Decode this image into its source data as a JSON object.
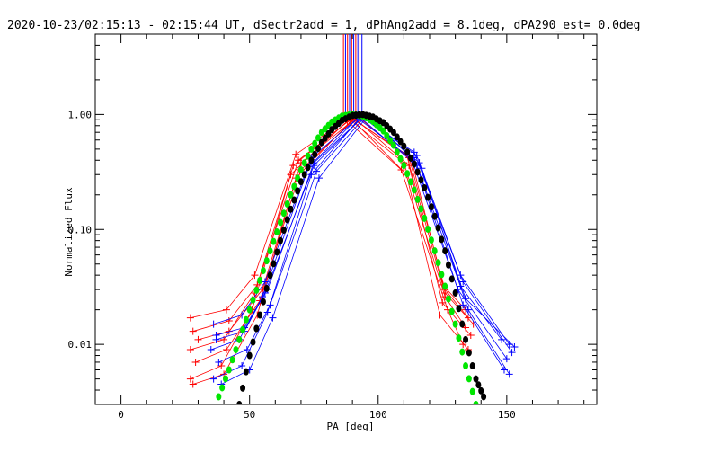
{
  "chart_data": {
    "type": "line",
    "title": "2020-10-23/02:15:13 - 02:15:44 UT, dSectr2add = 1, dPhAng2add = 8.1deg, dPA290_est=  0.0deg",
    "xlabel": "PA [deg]",
    "ylabel": "Normalized Flux",
    "xlim": [
      -10,
      185
    ],
    "ylim": [
      0.003,
      5
    ],
    "yscale": "log",
    "x_ticks": [
      0,
      50,
      100,
      150
    ],
    "x_tick_labels": [
      "0",
      "50",
      "100",
      "150"
    ],
    "y_ticks": [
      0.01,
      0.1,
      1.0
    ],
    "y_tick_labels": [
      "0.01",
      "0.10",
      "1.00"
    ],
    "vertical_lines": [
      {
        "x": 86.5,
        "color": "#ff0000"
      },
      {
        "x": 87.3,
        "color": "#0000ff"
      },
      {
        "x": 88.1,
        "color": "#ff0000"
      },
      {
        "x": 88.9,
        "color": "#0000ff"
      },
      {
        "x": 89.7,
        "color": "#ff0000"
      },
      {
        "x": 90.5,
        "color": "#0000ff"
      },
      {
        "x": 91.3,
        "color": "#ff0000"
      },
      {
        "x": 92.1,
        "color": "#0000ff"
      },
      {
        "x": 92.9,
        "color": "#ff0000"
      },
      {
        "x": 93.7,
        "color": "#0000ff"
      }
    ],
    "series": [
      {
        "color": "#ff0000",
        "marker": "plus",
        "x": [
          27,
          41,
          52,
          68,
          89,
          111,
          125,
          134
        ],
        "y": [
          0.017,
          0.02,
          0.04,
          0.45,
          0.95,
          0.45,
          0.033,
          0.02
        ]
      },
      {
        "color": "#ff0000",
        "marker": "plus",
        "x": [
          28,
          42,
          53,
          69,
          90,
          112,
          126,
          135
        ],
        "y": [
          0.013,
          0.016,
          0.033,
          0.4,
          0.93,
          0.42,
          0.03,
          0.017
        ]
      },
      {
        "color": "#ff0000",
        "marker": "plus",
        "x": [
          27,
          40,
          52,
          67,
          89,
          110,
          126,
          134
        ],
        "y": [
          0.009,
          0.011,
          0.028,
          0.36,
          0.9,
          0.38,
          0.026,
          0.014
        ]
      },
      {
        "color": "#ff0000",
        "marker": "plus",
        "x": [
          29,
          41,
          54,
          70,
          91,
          112,
          125,
          136
        ],
        "y": [
          0.007,
          0.009,
          0.024,
          0.33,
          0.92,
          0.36,
          0.023,
          0.012
        ]
      },
      {
        "color": "#ff0000",
        "marker": "plus",
        "x": [
          27,
          39,
          51,
          66,
          88,
          109,
          127,
          133
        ],
        "y": [
          0.005,
          0.0065,
          0.02,
          0.3,
          0.88,
          0.33,
          0.02,
          0.01
        ]
      },
      {
        "color": "#ff0000",
        "marker": "plus",
        "x": [
          28,
          40,
          53,
          68,
          90,
          111,
          124,
          135
        ],
        "y": [
          0.0045,
          0.0055,
          0.018,
          0.28,
          0.9,
          0.3,
          0.018,
          0.009
        ]
      },
      {
        "color": "#ff0000",
        "marker": "plus",
        "x": [
          30,
          42,
          55,
          70,
          92,
          113,
          126,
          137
        ],
        "y": [
          0.011,
          0.013,
          0.03,
          0.38,
          0.96,
          0.4,
          0.028,
          0.015
        ]
      },
      {
        "color": "#0000ff",
        "marker": "plus",
        "x": [
          36,
          47,
          56,
          74,
          93,
          114,
          132,
          151
        ],
        "y": [
          0.015,
          0.018,
          0.035,
          0.42,
          0.97,
          0.47,
          0.04,
          0.01
        ]
      },
      {
        "color": "#0000ff",
        "marker": "plus",
        "x": [
          37,
          48,
          57,
          75,
          94,
          115,
          133,
          152
        ],
        "y": [
          0.012,
          0.014,
          0.03,
          0.38,
          0.95,
          0.44,
          0.035,
          0.0085
        ]
      },
      {
        "color": "#0000ff",
        "marker": "plus",
        "x": [
          35,
          46,
          55,
          73,
          92,
          113,
          131,
          150
        ],
        "y": [
          0.009,
          0.011,
          0.026,
          0.35,
          0.93,
          0.41,
          0.03,
          0.0075
        ]
      },
      {
        "color": "#0000ff",
        "marker": "plus",
        "x": [
          38,
          49,
          58,
          76,
          95,
          116,
          134,
          153
        ],
        "y": [
          0.007,
          0.009,
          0.022,
          0.32,
          0.96,
          0.38,
          0.025,
          0.0095
        ]
      },
      {
        "color": "#0000ff",
        "marker": "plus",
        "x": [
          36,
          47,
          57,
          74,
          93,
          115,
          133,
          149
        ],
        "y": [
          0.005,
          0.0065,
          0.019,
          0.3,
          0.94,
          0.36,
          0.022,
          0.006
        ]
      },
      {
        "color": "#0000ff",
        "marker": "plus",
        "x": [
          39,
          50,
          59,
          77,
          96,
          117,
          135,
          151
        ],
        "y": [
          0.0045,
          0.006,
          0.017,
          0.28,
          0.98,
          0.34,
          0.02,
          0.0055
        ]
      },
      {
        "color": "#0000ff",
        "marker": "plus",
        "x": [
          37,
          48,
          56,
          75,
          94,
          114,
          132,
          148
        ],
        "y": [
          0.011,
          0.013,
          0.028,
          0.36,
          0.95,
          0.42,
          0.032,
          0.011
        ]
      },
      {
        "color": "#00e600",
        "marker": "dot",
        "x": [
          38,
          42,
          46,
          50,
          54,
          58,
          62,
          66,
          70,
          74,
          78,
          82,
          86,
          90,
          94,
          98,
          102,
          106,
          110,
          114,
          118,
          122,
          126,
          130,
          134,
          138
        ],
        "y": [
          0.0035,
          0.006,
          0.011,
          0.02,
          0.036,
          0.065,
          0.115,
          0.2,
          0.33,
          0.5,
          0.7,
          0.86,
          0.97,
          1.0,
          0.97,
          0.87,
          0.72,
          0.54,
          0.36,
          0.22,
          0.125,
          0.065,
          0.032,
          0.015,
          0.0065,
          0.003
        ]
      },
      {
        "color": "#000000",
        "marker": "dot",
        "x": [
          46,
          50,
          54,
          58,
          62,
          66,
          70,
          74,
          78,
          82,
          86,
          90,
          94,
          98,
          102,
          106,
          110,
          114,
          118,
          122,
          126,
          130,
          134,
          138,
          141
        ],
        "y": [
          0.003,
          0.008,
          0.018,
          0.04,
          0.08,
          0.15,
          0.26,
          0.4,
          0.57,
          0.74,
          0.89,
          0.98,
          1.0,
          0.95,
          0.85,
          0.7,
          0.53,
          0.37,
          0.23,
          0.13,
          0.065,
          0.028,
          0.011,
          0.005,
          0.0035
        ]
      }
    ]
  }
}
